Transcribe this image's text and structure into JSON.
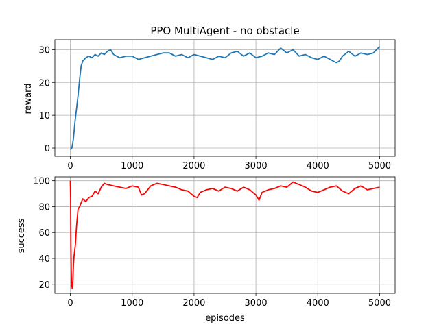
{
  "chart_data": [
    {
      "type": "line",
      "title": "PPO MultiAgent - no obstacle",
      "xlabel": "",
      "ylabel": "reward",
      "xlim": [
        -250,
        5250
      ],
      "ylim": [
        -2.5,
        33
      ],
      "xticks": [
        0,
        1000,
        2000,
        3000,
        4000,
        5000
      ],
      "yticks": [
        0,
        10,
        20,
        30
      ],
      "grid": true,
      "color": "#1f77b4",
      "series": [
        {
          "x": [
            0,
            25,
            50,
            75,
            100,
            125,
            150,
            175,
            200,
            250,
            300,
            350,
            400,
            450,
            500,
            550,
            600,
            650,
            700,
            750,
            800,
            900,
            1000,
            1100,
            1200,
            1300,
            1400,
            1500,
            1600,
            1700,
            1800,
            1900,
            2000,
            2100,
            2200,
            2300,
            2400,
            2500,
            2600,
            2700,
            2800,
            2900,
            3000,
            3100,
            3200,
            3300,
            3400,
            3500,
            3600,
            3700,
            3800,
            3900,
            4000,
            4100,
            4200,
            4300,
            4350,
            4400,
            4500,
            4600,
            4700,
            4800,
            4900,
            4950,
            5000
          ],
          "values": [
            -0.5,
            0,
            3,
            8,
            12,
            16,
            21,
            25,
            26.5,
            27.5,
            28,
            27.5,
            28.5,
            28,
            29,
            28.5,
            29.5,
            30,
            28.5,
            28,
            27.5,
            28,
            28,
            27,
            27.5,
            28,
            28.5,
            29,
            29,
            28,
            28.5,
            27.5,
            28.5,
            28,
            27.5,
            27,
            28,
            27.5,
            29,
            29.5,
            28,
            29,
            27.5,
            28,
            29,
            28.5,
            30.5,
            29,
            30,
            28,
            28.5,
            27.5,
            27,
            28,
            27,
            26,
            26.5,
            28,
            29.5,
            28,
            29,
            28.5,
            29,
            30,
            31
          ]
        }
      ]
    },
    {
      "type": "line",
      "title": "",
      "xlabel": "episodes",
      "ylabel": "success",
      "xlim": [
        -250,
        5250
      ],
      "ylim": [
        13,
        103
      ],
      "xticks": [
        0,
        1000,
        2000,
        3000,
        4000,
        5000
      ],
      "yticks": [
        20,
        40,
        60,
        80,
        100
      ],
      "grid": true,
      "color": "#ff0000",
      "series": [
        {
          "x": [
            0,
            5,
            10,
            15,
            20,
            30,
            40,
            50,
            60,
            80,
            100,
            125,
            150,
            175,
            200,
            250,
            300,
            350,
            400,
            450,
            500,
            550,
            600,
            700,
            800,
            900,
            1000,
            1100,
            1150,
            1200,
            1300,
            1400,
            1500,
            1600,
            1700,
            1800,
            1900,
            2000,
            2050,
            2100,
            2200,
            2300,
            2400,
            2500,
            2600,
            2700,
            2800,
            2900,
            3000,
            3050,
            3100,
            3200,
            3300,
            3400,
            3500,
            3600,
            3700,
            3800,
            3900,
            4000,
            4100,
            4200,
            4300,
            4400,
            4500,
            4600,
            4700,
            4800,
            4900,
            5000
          ],
          "values": [
            100,
            85,
            50,
            30,
            20,
            17,
            22,
            35,
            42,
            50,
            65,
            78,
            80,
            83,
            86,
            84,
            87,
            88,
            92,
            90,
            95,
            98,
            97,
            96,
            95,
            94,
            96,
            95,
            89,
            90,
            96,
            98,
            97,
            96,
            95,
            93,
            92,
            88,
            87,
            91,
            93,
            94,
            92,
            95,
            94,
            92,
            95,
            93,
            89,
            85,
            91,
            93,
            94,
            96,
            95,
            99,
            97,
            95,
            92,
            91,
            93,
            95,
            96,
            92,
            90,
            94,
            96,
            93,
            94,
            95
          ]
        }
      ]
    }
  ]
}
